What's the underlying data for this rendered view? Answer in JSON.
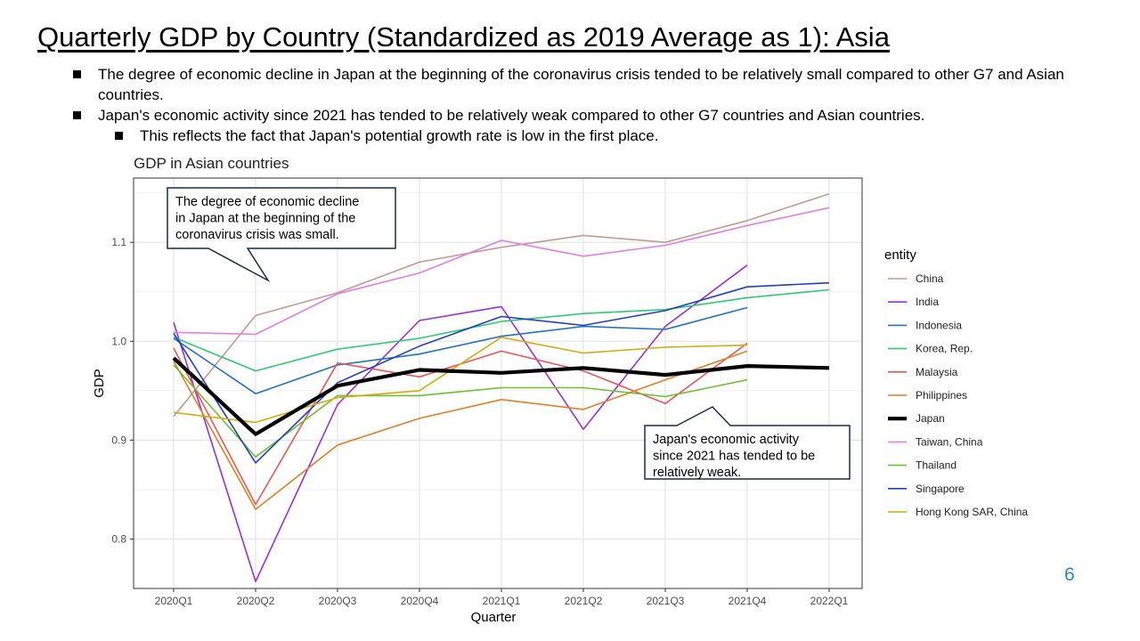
{
  "slide": {
    "title": "Quarterly GDP by Country (Standardized as 2019 Average as 1): Asia",
    "bullets": [
      "The degree of economic decline in Japan at the beginning of the coronavirus crisis tended to be relatively small compared to other G7 and Asian countries.",
      "Japan's economic activity since 2021 has tended to be relatively weak compared to other G7 countries and Asian countries."
    ],
    "sub_bullet": "This reflects the fact that Japan's potential growth rate is low in the first place.",
    "page_number": "6"
  },
  "chart_data": {
    "type": "line",
    "title": "GDP in Asian countries",
    "xlabel": "Quarter",
    "ylabel": "GDP",
    "categories": [
      "2020Q1",
      "2020Q2",
      "2020Q3",
      "2020Q4",
      "2021Q1",
      "2021Q2",
      "2021Q3",
      "2021Q4",
      "2022Q1"
    ],
    "ylim": [
      0.75,
      1.165
    ],
    "yticks": [
      0.8,
      0.9,
      1.0,
      1.1
    ],
    "ytick_labels": [
      "0.8",
      "0.9",
      "1.0",
      "1.1"
    ],
    "grid": true,
    "legend_title": "entity",
    "legend_position": "right",
    "series": [
      {
        "name": "China",
        "color": "#c49a94",
        "width": 1.6,
        "values": [
          0.924,
          1.026,
          1.049,
          1.08,
          1.095,
          1.107,
          1.1,
          1.122,
          1.149
        ]
      },
      {
        "name": "India",
        "color": "#9b30d9",
        "width": 1.6,
        "values": [
          1.019,
          0.757,
          0.936,
          1.021,
          1.035,
          0.911,
          1.015,
          1.077,
          null
        ]
      },
      {
        "name": "Indonesia",
        "color": "#1f73c9",
        "width": 1.6,
        "values": [
          1.003,
          0.947,
          0.976,
          0.987,
          1.005,
          1.015,
          1.012,
          1.034,
          null
        ]
      },
      {
        "name": "Korea, Rep.",
        "color": "#2ecc71",
        "width": 1.6,
        "values": [
          1.004,
          0.97,
          0.992,
          1.003,
          1.02,
          1.028,
          1.032,
          1.044,
          1.052
        ]
      },
      {
        "name": "Malaysia",
        "color": "#f05454",
        "width": 1.6,
        "values": [
          0.993,
          0.835,
          0.978,
          0.964,
          0.99,
          0.97,
          0.937,
          0.998,
          null
        ]
      },
      {
        "name": "Philippines",
        "color": "#e67e22",
        "width": 1.6,
        "values": [
          0.98,
          0.83,
          0.895,
          0.922,
          0.941,
          0.931,
          0.961,
          0.99,
          null
        ]
      },
      {
        "name": "Japan",
        "color": "#000000",
        "width": 4.2,
        "values": [
          0.983,
          0.906,
          0.955,
          0.971,
          0.968,
          0.973,
          0.966,
          0.975,
          0.973
        ]
      },
      {
        "name": "Taiwan, China",
        "color": "#e67ee0",
        "width": 1.6,
        "values": [
          1.009,
          1.007,
          1.048,
          1.069,
          1.102,
          1.086,
          1.097,
          1.117,
          1.135
        ]
      },
      {
        "name": "Thailand",
        "color": "#6ac22c",
        "width": 1.6,
        "values": [
          0.976,
          0.883,
          0.945,
          0.945,
          0.953,
          0.953,
          0.944,
          0.961,
          null
        ]
      },
      {
        "name": "Singapore",
        "color": "#1f3fc4",
        "width": 1.6,
        "values": [
          1.008,
          0.877,
          0.958,
          0.995,
          1.025,
          1.016,
          1.031,
          1.055,
          1.059
        ]
      },
      {
        "name": "Hong Kong SAR, China",
        "color": "#d4ac0d",
        "width": 1.6,
        "values": [
          0.928,
          0.918,
          0.943,
          0.95,
          1.004,
          0.988,
          0.994,
          0.996,
          null
        ]
      }
    ],
    "annotations": [
      {
        "text_lines": [
          " The degree of economic decline",
          "in Japan at the beginning of the",
          "coronavirus crisis was small."
        ]
      },
      {
        "text_lines": [
          "Japan's economic activity",
          "since 2021 has tended to be",
          "relatively weak."
        ]
      }
    ]
  }
}
